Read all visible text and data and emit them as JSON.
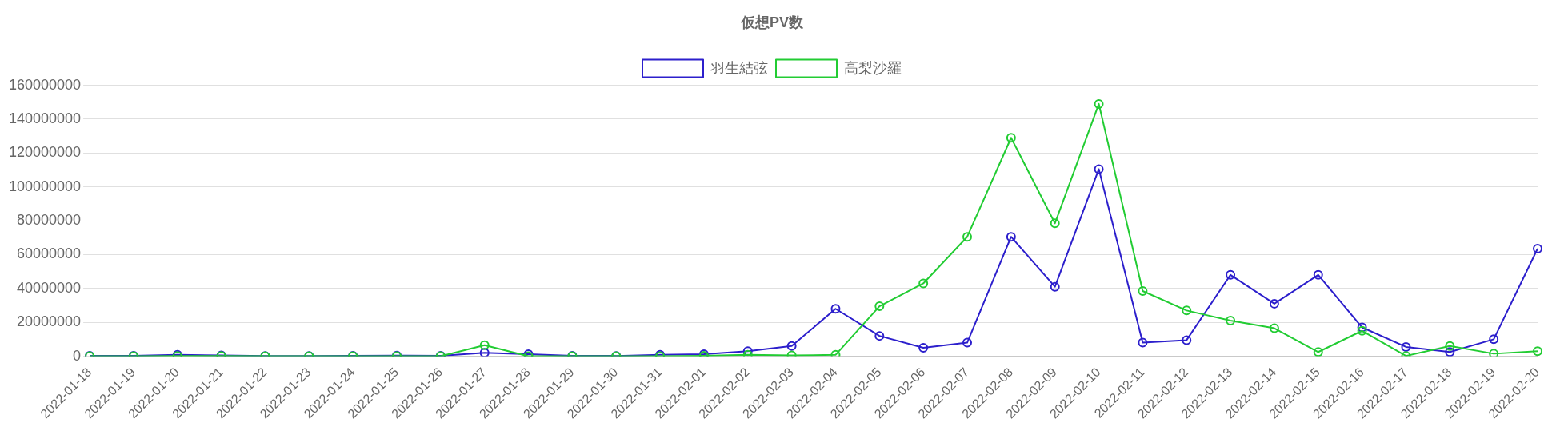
{
  "chart_data": {
    "type": "line",
    "title": "仮想PV数",
    "categories": [
      "2022-01-18",
      "2022-01-19",
      "2022-01-20",
      "2022-01-21",
      "2022-01-22",
      "2022-01-23",
      "2022-01-24",
      "2022-01-25",
      "2022-01-26",
      "2022-01-27",
      "2022-01-28",
      "2022-01-29",
      "2022-01-30",
      "2022-01-31",
      "2022-02-01",
      "2022-02-02",
      "2022-02-03",
      "2022-02-04",
      "2022-02-05",
      "2022-02-06",
      "2022-02-07",
      "2022-02-08",
      "2022-02-09",
      "2022-02-10",
      "2022-02-11",
      "2022-02-12",
      "2022-02-13",
      "2022-02-14",
      "2022-02-15",
      "2022-02-16",
      "2022-02-17",
      "2022-02-18",
      "2022-02-19",
      "2022-02-20"
    ],
    "series": [
      {
        "name": "羽生結弦",
        "color": "#2c1fcc",
        "values": [
          300000,
          300000,
          800000,
          500000,
          200000,
          100000,
          300000,
          400000,
          300000,
          2000000,
          1200000,
          300000,
          200000,
          800000,
          1200000,
          3000000,
          6000000,
          28000000,
          12000000,
          5000000,
          8000000,
          70500000,
          41000000,
          110500000,
          8000000,
          9500000,
          48000000,
          31000000,
          48000000,
          17000000,
          5500000,
          2500000,
          10000000,
          63500000
        ]
      },
      {
        "name": "高梨沙羅",
        "color": "#22cc33",
        "values": [
          0,
          0,
          200000,
          200000,
          0,
          0,
          0,
          0,
          0,
          6500000,
          0,
          0,
          0,
          0,
          300000,
          800000,
          500000,
          800000,
          29500000,
          43000000,
          70500000,
          129000000,
          78500000,
          149000000,
          38500000,
          27000000,
          21000000,
          16500000,
          2500000,
          15000000,
          200000,
          6000000,
          1500000,
          3000000
        ]
      }
    ],
    "ylim": [
      0,
      160000000
    ],
    "yticks": [
      0,
      20000000,
      40000000,
      60000000,
      80000000,
      100000000,
      120000000,
      140000000,
      160000000
    ],
    "grid": "y",
    "legend": "top",
    "marker": "circle",
    "line_style": "solid"
  }
}
